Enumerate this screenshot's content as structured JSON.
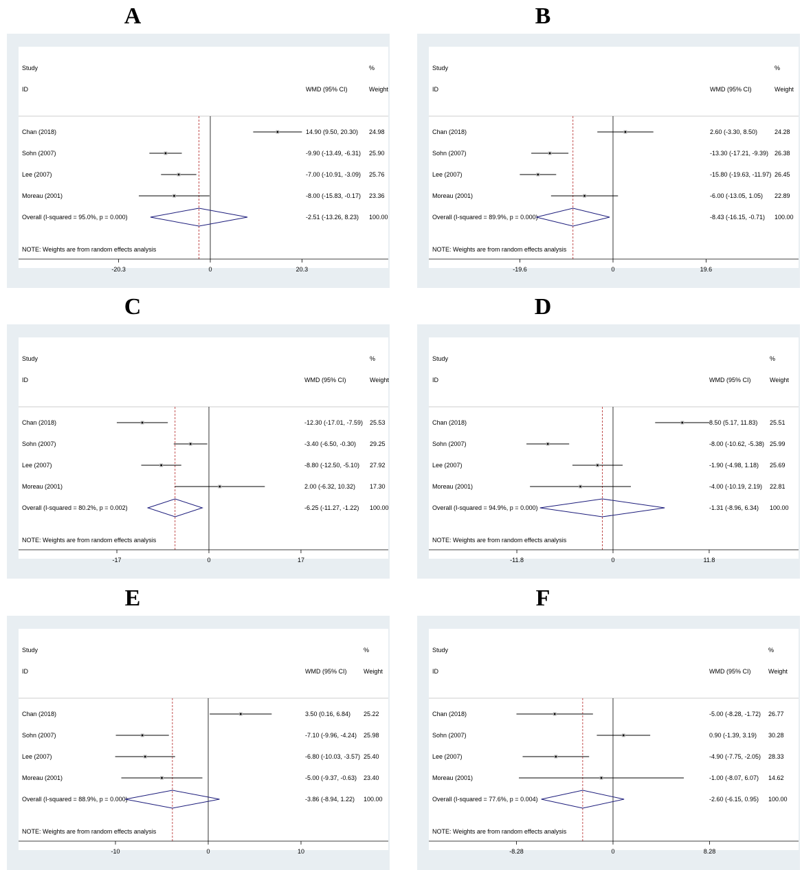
{
  "panels": [
    {
      "letter": "A",
      "header": {
        "study": "Study",
        "id": "ID",
        "effect": "WMD (95% CI)",
        "pct": "%",
        "weight": "Weight"
      },
      "studies": [
        {
          "name": "Chan  (2018)",
          "est": 14.9,
          "lo": 9.5,
          "hi": 20.3,
          "ci_text": "14.90 (9.50, 20.30)",
          "weight_text": "24.98"
        },
        {
          "name": "Sohn (2007)",
          "est": -9.9,
          "lo": -13.49,
          "hi": -6.31,
          "ci_text": "-9.90 (-13.49, -6.31)",
          "weight_text": "25.90"
        },
        {
          "name": "Lee (2007)",
          "est": -7.0,
          "lo": -10.91,
          "hi": -3.09,
          "ci_text": "-7.00 (-10.91, -3.09)",
          "weight_text": "25.76"
        },
        {
          "name": "Moreau (2001)",
          "est": -8.0,
          "lo": -15.83,
          "hi": -0.17,
          "ci_text": "-8.00 (-15.83, -0.17)",
          "weight_text": "23.36"
        }
      ],
      "overall": {
        "label": "Overall  (I-squared = 95.0%, p = 0.000)",
        "est": -2.51,
        "lo": -13.26,
        "hi": 8.23,
        "ci_text": "-2.51 (-13.26, 8.23)",
        "weight_text": "100.00"
      },
      "note": "NOTE: Weights are from random effects analysis",
      "axis": {
        "min": -20.3,
        "max": 20.3,
        "ticks": [
          -20.3,
          0,
          20.3
        ],
        "tick_labels": [
          "-20.3",
          "0",
          "20.3"
        ]
      }
    },
    {
      "letter": "B",
      "header": {
        "study": "Study",
        "id": "ID",
        "effect": "WMD (95% CI)",
        "pct": "%",
        "weight": "Weight"
      },
      "studies": [
        {
          "name": "Chan  (2018)",
          "est": 2.6,
          "lo": -3.3,
          "hi": 8.5,
          "ci_text": "2.60 (-3.30, 8.50)",
          "weight_text": "24.28"
        },
        {
          "name": "Sohn (2007)",
          "est": -13.3,
          "lo": -17.21,
          "hi": -9.39,
          "ci_text": "-13.30 (-17.21, -9.39)",
          "weight_text": "26.38"
        },
        {
          "name": "Lee (2007)",
          "est": -15.8,
          "lo": -19.63,
          "hi": -11.97,
          "ci_text": "-15.80 (-19.63, -11.97)",
          "weight_text": "26.45"
        },
        {
          "name": "Moreau (2001)",
          "est": -6.0,
          "lo": -13.05,
          "hi": 1.05,
          "ci_text": "-6.00 (-13.05, 1.05)",
          "weight_text": "22.89"
        }
      ],
      "overall": {
        "label": "Overall  (I-squared = 89.9%, p = 0.000)",
        "est": -8.43,
        "lo": -16.15,
        "hi": -0.71,
        "ci_text": "-8.43 (-16.15, -0.71)",
        "weight_text": "100.00"
      },
      "note": "NOTE: Weights are from random effects analysis",
      "axis": {
        "min": -19.6,
        "max": 19.6,
        "ticks": [
          -19.6,
          0,
          19.6
        ],
        "tick_labels": [
          "-19.6",
          "0",
          "19.6"
        ]
      }
    },
    {
      "letter": "C",
      "header": {
        "study": "Study",
        "id": "ID",
        "effect": "WMD (95% CI)",
        "pct": "%",
        "weight": "Weight"
      },
      "studies": [
        {
          "name": "Chan  (2018)",
          "est": -12.3,
          "lo": -17.01,
          "hi": -7.59,
          "ci_text": "-12.30 (-17.01, -7.59)",
          "weight_text": "25.53"
        },
        {
          "name": "Sohn (2007)",
          "est": -3.4,
          "lo": -6.5,
          "hi": -0.3,
          "ci_text": "-3.40 (-6.50, -0.30)",
          "weight_text": "29.25"
        },
        {
          "name": "Lee (2007)",
          "est": -8.8,
          "lo": -12.5,
          "hi": -5.1,
          "ci_text": "-8.80 (-12.50, -5.10)",
          "weight_text": "27.92"
        },
        {
          "name": "Moreau (2001)",
          "est": 2.0,
          "lo": -6.32,
          "hi": 10.32,
          "ci_text": "2.00 (-6.32, 10.32)",
          "weight_text": "17.30"
        }
      ],
      "overall": {
        "label": "Overall  (I-squared = 80.2%, p = 0.002)",
        "est": -6.25,
        "lo": -11.27,
        "hi": -1.22,
        "ci_text": "-6.25 (-11.27, -1.22)",
        "weight_text": "100.00"
      },
      "note": "NOTE: Weights are from random effects analysis",
      "axis": {
        "min": -17,
        "max": 17,
        "ticks": [
          -17,
          0,
          17
        ],
        "tick_labels": [
          "-17",
          "0",
          "17"
        ]
      }
    },
    {
      "letter": "D",
      "header": {
        "study": "Study",
        "id": "ID",
        "effect": "WMD (95% CI)",
        "pct": "%",
        "weight": "Weight"
      },
      "studies": [
        {
          "name": "Chan  (2018)",
          "est": 8.5,
          "lo": 5.17,
          "hi": 11.83,
          "ci_text": "8.50 (5.17, 11.83)",
          "weight_text": "25.51"
        },
        {
          "name": "Sohn (2007)",
          "est": -8.0,
          "lo": -10.62,
          "hi": -5.38,
          "ci_text": "-8.00 (-10.62, -5.38)",
          "weight_text": "25.99"
        },
        {
          "name": "Lee (2007)",
          "est": -1.9,
          "lo": -4.98,
          "hi": 1.18,
          "ci_text": "-1.90 (-4.98, 1.18)",
          "weight_text": "25.69"
        },
        {
          "name": "Moreau (2001)",
          "est": -4.0,
          "lo": -10.19,
          "hi": 2.19,
          "ci_text": "-4.00 (-10.19, 2.19)",
          "weight_text": "22.81"
        }
      ],
      "overall": {
        "label": "Overall  (I-squared = 94.9%, p = 0.000)",
        "est": -1.31,
        "lo": -8.96,
        "hi": 6.34,
        "ci_text": "-1.31 (-8.96, 6.34)",
        "weight_text": "100.00"
      },
      "note": "NOTE: Weights are from random effects analysis",
      "axis": {
        "min": -11.8,
        "max": 11.8,
        "ticks": [
          -11.8,
          0,
          11.8
        ],
        "tick_labels": [
          "-11.8",
          "0",
          "11.8"
        ]
      }
    },
    {
      "letter": "E",
      "header": {
        "study": "Study",
        "id": "ID",
        "effect": "WMD (95% CI)",
        "pct": "%",
        "weight": "Weight"
      },
      "studies": [
        {
          "name": "Chan  (2018)",
          "est": 3.5,
          "lo": 0.16,
          "hi": 6.84,
          "ci_text": "3.50 (0.16, 6.84)",
          "weight_text": "25.22"
        },
        {
          "name": "Sohn (2007)",
          "est": -7.1,
          "lo": -9.96,
          "hi": -4.24,
          "ci_text": "-7.10 (-9.96, -4.24)",
          "weight_text": "25.98"
        },
        {
          "name": "Lee (2007)",
          "est": -6.8,
          "lo": -10.03,
          "hi": -3.57,
          "ci_text": "-6.80 (-10.03, -3.57)",
          "weight_text": "25.40"
        },
        {
          "name": "Moreau (2001)",
          "est": -5.0,
          "lo": -9.37,
          "hi": -0.63,
          "ci_text": "-5.00 (-9.37, -0.63)",
          "weight_text": "23.40"
        }
      ],
      "overall": {
        "label": "Overall  (I-squared = 88.9%, p = 0.000)",
        "est": -3.86,
        "lo": -8.94,
        "hi": 1.22,
        "ci_text": "-3.86 (-8.94, 1.22)",
        "weight_text": "100.00"
      },
      "note": "NOTE: Weights are from random effects analysis",
      "axis": {
        "min": -10,
        "max": 10,
        "ticks": [
          -10,
          0,
          10
        ],
        "tick_labels": [
          "-10",
          "0",
          "10"
        ]
      }
    },
    {
      "letter": "F",
      "header": {
        "study": "Study",
        "id": "ID",
        "effect": "WMD (95% CI)",
        "pct": "%",
        "weight": "Weight"
      },
      "studies": [
        {
          "name": "Chan  (2018)",
          "est": -5.0,
          "lo": -8.28,
          "hi": -1.72,
          "ci_text": "-5.00 (-8.28, -1.72)",
          "weight_text": "26.77"
        },
        {
          "name": "Sohn (2007)",
          "est": 0.9,
          "lo": -1.39,
          "hi": 3.19,
          "ci_text": "0.90 (-1.39, 3.19)",
          "weight_text": "30.28"
        },
        {
          "name": "Lee (2007)",
          "est": -4.9,
          "lo": -7.75,
          "hi": -2.05,
          "ci_text": "-4.90 (-7.75, -2.05)",
          "weight_text": "28.33"
        },
        {
          "name": "Moreau (2001)",
          "est": -1.0,
          "lo": -8.07,
          "hi": 6.07,
          "ci_text": "-1.00 (-8.07, 6.07)",
          "weight_text": "14.62"
        }
      ],
      "overall": {
        "label": "Overall  (I-squared = 77.6%, p = 0.004)",
        "est": -2.6,
        "lo": -6.15,
        "hi": 0.95,
        "ci_text": "-2.60 (-6.15, 0.95)",
        "weight_text": "100.00"
      },
      "note": "NOTE: Weights are from random effects analysis",
      "axis": {
        "min": -8.28,
        "max": 8.28,
        "ticks": [
          -8.28,
          0,
          8.28
        ],
        "tick_labels": [
          "-8.28",
          "0",
          "8.28"
        ]
      }
    }
  ],
  "colors": {
    "panel_bg": "#e8eef2",
    "plot_bg": "#ffffff",
    "diamond": "#1a1a7a",
    "reference_line": "#b22222",
    "line": "#000000"
  },
  "chart_data": [
    {
      "type": "forest",
      "panel": "A",
      "measure": "WMD (95% CI)",
      "categories": [
        "Chan  (2018)",
        "Sohn (2007)",
        "Lee (2007)",
        "Moreau (2001)"
      ],
      "estimates": [
        14.9,
        -9.9,
        -7.0,
        -8.0
      ],
      "ci_lower": [
        9.5,
        -13.49,
        -10.91,
        -15.83
      ],
      "ci_upper": [
        20.3,
        -6.31,
        -3.09,
        -0.17
      ],
      "weights": [
        24.98,
        25.9,
        25.76,
        23.36
      ],
      "overall": {
        "estimate": -2.51,
        "ci": [
          -13.26,
          8.23
        ],
        "i_squared": 95.0,
        "p": 0.0
      },
      "xlim": [
        -20.3,
        20.3
      ],
      "xticks": [
        -20.3,
        0,
        20.3
      ]
    },
    {
      "type": "forest",
      "panel": "B",
      "measure": "WMD (95% CI)",
      "categories": [
        "Chan  (2018)",
        "Sohn (2007)",
        "Lee (2007)",
        "Moreau (2001)"
      ],
      "estimates": [
        2.6,
        -13.3,
        -15.8,
        -6.0
      ],
      "ci_lower": [
        -3.3,
        -17.21,
        -19.63,
        -13.05
      ],
      "ci_upper": [
        8.5,
        -9.39,
        -11.97,
        1.05
      ],
      "weights": [
        24.28,
        26.38,
        26.45,
        22.89
      ],
      "overall": {
        "estimate": -8.43,
        "ci": [
          -16.15,
          -0.71
        ],
        "i_squared": 89.9,
        "p": 0.0
      },
      "xlim": [
        -19.6,
        19.6
      ],
      "xticks": [
        -19.6,
        0,
        19.6
      ]
    },
    {
      "type": "forest",
      "panel": "C",
      "measure": "WMD (95% CI)",
      "categories": [
        "Chan  (2018)",
        "Sohn (2007)",
        "Lee (2007)",
        "Moreau (2001)"
      ],
      "estimates": [
        -12.3,
        -3.4,
        -8.8,
        2.0
      ],
      "ci_lower": [
        -17.01,
        -6.5,
        -12.5,
        -6.32
      ],
      "ci_upper": [
        -7.59,
        -0.3,
        -5.1,
        10.32
      ],
      "weights": [
        25.53,
        29.25,
        27.92,
        17.3
      ],
      "overall": {
        "estimate": -6.25,
        "ci": [
          -11.27,
          -1.22
        ],
        "i_squared": 80.2,
        "p": 0.002
      },
      "xlim": [
        -17,
        17
      ],
      "xticks": [
        -17,
        0,
        17
      ]
    },
    {
      "type": "forest",
      "panel": "D",
      "measure": "WMD (95% CI)",
      "categories": [
        "Chan  (2018)",
        "Sohn (2007)",
        "Lee (2007)",
        "Moreau (2001)"
      ],
      "estimates": [
        8.5,
        -8.0,
        -1.9,
        -4.0
      ],
      "ci_lower": [
        5.17,
        -10.62,
        -4.98,
        -10.19
      ],
      "ci_upper": [
        11.83,
        -5.38,
        1.18,
        2.19
      ],
      "weights": [
        25.51,
        25.99,
        25.69,
        22.81
      ],
      "overall": {
        "estimate": -1.31,
        "ci": [
          -8.96,
          6.34
        ],
        "i_squared": 94.9,
        "p": 0.0
      },
      "xlim": [
        -11.8,
        11.8
      ],
      "xticks": [
        -11.8,
        0,
        11.8
      ]
    },
    {
      "type": "forest",
      "panel": "E",
      "measure": "WMD (95% CI)",
      "categories": [
        "Chan  (2018)",
        "Sohn (2007)",
        "Lee (2007)",
        "Moreau (2001)"
      ],
      "estimates": [
        3.5,
        -7.1,
        -6.8,
        -5.0
      ],
      "ci_lower": [
        0.16,
        -9.96,
        -10.03,
        -9.37
      ],
      "ci_upper": [
        6.84,
        -4.24,
        -3.57,
        -0.63
      ],
      "weights": [
        25.22,
        25.98,
        25.4,
        23.4
      ],
      "overall": {
        "estimate": -3.86,
        "ci": [
          -8.94,
          1.22
        ],
        "i_squared": 88.9,
        "p": 0.0
      },
      "xlim": [
        -10,
        10
      ],
      "xticks": [
        -10,
        0,
        10
      ]
    },
    {
      "type": "forest",
      "panel": "F",
      "measure": "WMD (95% CI)",
      "categories": [
        "Chan  (2018)",
        "Sohn (2007)",
        "Lee (2007)",
        "Moreau (2001)"
      ],
      "estimates": [
        -5.0,
        0.9,
        -4.9,
        -1.0
      ],
      "ci_lower": [
        -8.28,
        -1.39,
        -7.75,
        -8.07
      ],
      "ci_upper": [
        -1.72,
        3.19,
        -2.05,
        6.07
      ],
      "weights": [
        26.77,
        30.28,
        28.33,
        14.62
      ],
      "overall": {
        "estimate": -2.6,
        "ci": [
          -6.15,
          0.95
        ],
        "i_squared": 77.6,
        "p": 0.004
      },
      "xlim": [
        -8.28,
        8.28
      ],
      "xticks": [
        -8.28,
        0,
        8.28
      ]
    }
  ]
}
